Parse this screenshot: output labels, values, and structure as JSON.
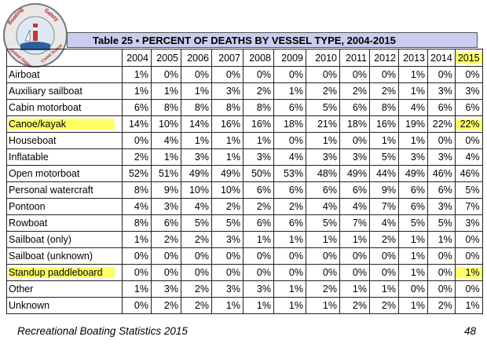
{
  "logo": {
    "top": "Boating",
    "right": "Safety",
    "bottom_left": "United States",
    "bottom_right": "Coast Guard"
  },
  "title": "Table 25 ▪  PERCENT OF DEATHS BY VESSEL TYPE, 2004-2015",
  "table": {
    "columns": [
      "2004",
      "2005",
      "2006",
      "2007",
      "2008",
      "2009",
      "2010",
      "2011",
      "2012",
      "2013",
      "2014",
      "2015"
    ],
    "rows": [
      [
        "Airboat",
        "1%",
        "0%",
        "0%",
        "0%",
        "0%",
        "0%",
        "0%",
        "0%",
        "0%",
        "1%",
        "0%",
        "0%"
      ],
      [
        "Auxiliary sailboat",
        "1%",
        "1%",
        "1%",
        "3%",
        "2%",
        "1%",
        "2%",
        "2%",
        "2%",
        "1%",
        "3%",
        "3%"
      ],
      [
        "Cabin motorboat",
        "6%",
        "8%",
        "8%",
        "8%",
        "8%",
        "6%",
        "5%",
        "6%",
        "8%",
        "4%",
        "6%",
        "6%"
      ],
      [
        "Canoe/kayak",
        "14%",
        "10%",
        "14%",
        "16%",
        "16%",
        "18%",
        "21%",
        "18%",
        "16%",
        "19%",
        "22%",
        "22%"
      ],
      [
        "Houseboat",
        "0%",
        "4%",
        "1%",
        "1%",
        "1%",
        "0%",
        "1%",
        "0%",
        "1%",
        "1%",
        "0%",
        "0%"
      ],
      [
        "Inflatable",
        "2%",
        "1%",
        "3%",
        "1%",
        "3%",
        "4%",
        "3%",
        "3%",
        "5%",
        "3%",
        "3%",
        "4%"
      ],
      [
        "Open motorboat",
        "52%",
        "51%",
        "49%",
        "49%",
        "50%",
        "53%",
        "48%",
        "49%",
        "44%",
        "49%",
        "46%",
        "46%"
      ],
      [
        "Personal watercraft",
        "8%",
        "9%",
        "10%",
        "10%",
        "6%",
        "6%",
        "6%",
        "6%",
        "9%",
        "6%",
        "6%",
        "5%"
      ],
      [
        "Pontoon",
        "4%",
        "3%",
        "4%",
        "2%",
        "2%",
        "2%",
        "4%",
        "4%",
        "7%",
        "6%",
        "3%",
        "7%"
      ],
      [
        "Rowboat",
        "8%",
        "6%",
        "5%",
        "5%",
        "6%",
        "6%",
        "5%",
        "7%",
        "4%",
        "5%",
        "5%",
        "3%"
      ],
      [
        "Sailboat (only)",
        "1%",
        "2%",
        "2%",
        "3%",
        "1%",
        "1%",
        "1%",
        "1%",
        "2%",
        "1%",
        "1%",
        "0%"
      ],
      [
        "Sailboat (unknown)",
        "0%",
        "0%",
        "0%",
        "0%",
        "0%",
        "0%",
        "0%",
        "0%",
        "0%",
        "1%",
        "0%",
        "0%"
      ],
      [
        "Standup paddleboard",
        "0%",
        "0%",
        "0%",
        "0%",
        "0%",
        "0%",
        "0%",
        "0%",
        "0%",
        "1%",
        "0%",
        "1%"
      ],
      [
        "Other",
        "1%",
        "3%",
        "2%",
        "3%",
        "3%",
        "1%",
        "2%",
        "1%",
        "1%",
        "0%",
        "0%",
        "0%"
      ],
      [
        "Unknown",
        "0%",
        "2%",
        "2%",
        "1%",
        "1%",
        "1%",
        "1%",
        "2%",
        "2%",
        "1%",
        "2%",
        "1%"
      ]
    ]
  },
  "footer": {
    "left": "Recreational Boating Statistics 2015",
    "right": "48"
  }
}
